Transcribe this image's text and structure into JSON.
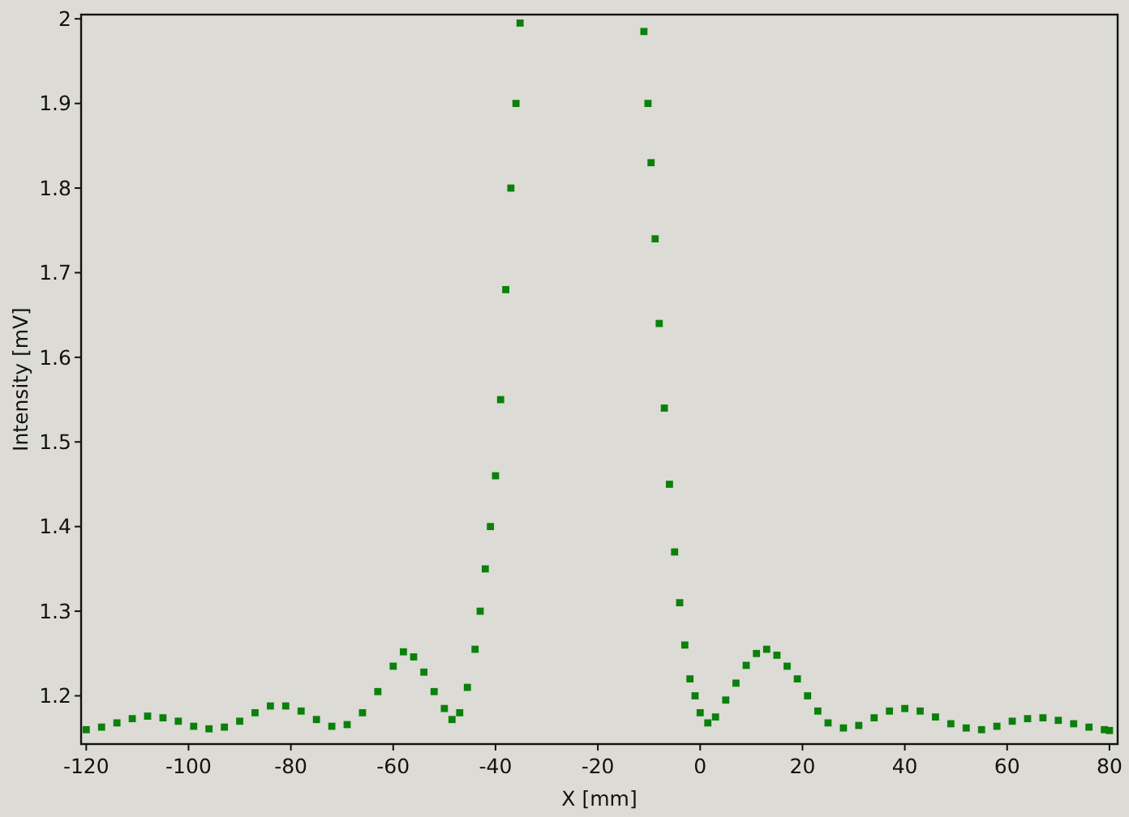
{
  "chart_data": {
    "type": "scatter",
    "xlabel": "X [mm]",
    "ylabel": "Intensity [mV]",
    "marker": "square",
    "grid": false,
    "xlim": [
      -121,
      81.6
    ],
    "ylim": [
      1.143,
      2.005
    ],
    "xticks": [
      -120,
      -100,
      -80,
      -60,
      -40,
      -20,
      0,
      20,
      40,
      60,
      80
    ],
    "yticks": [
      1.2,
      1.3,
      1.4,
      1.5,
      1.6,
      1.7,
      1.8,
      1.9,
      2
    ],
    "series": [
      {
        "color": "#0b800b",
        "x": [
          -120,
          -117,
          -114,
          -111,
          -108,
          -105,
          -102,
          -99,
          -96,
          -93,
          -90,
          -87,
          -84,
          -81,
          -78,
          -75,
          -72,
          -69,
          -66,
          -63,
          -60,
          -58,
          -56,
          -54,
          -52,
          -50,
          -48.5,
          -47,
          -45.5,
          -44,
          -43,
          -42,
          -41,
          -40,
          -39,
          -38,
          -37,
          -36,
          -35.2,
          -11,
          -10.2,
          -9.6,
          -8.8,
          -8,
          -7,
          -6,
          -5,
          -4,
          -3,
          -2,
          -1,
          0,
          1.5,
          3,
          5,
          7,
          9,
          11,
          13,
          15,
          17,
          19,
          21,
          23,
          25,
          28,
          31,
          34,
          37,
          40,
          43,
          46,
          49,
          52,
          55,
          58,
          61,
          64,
          67,
          70,
          73,
          76,
          79,
          80
        ],
        "values": [
          1.16,
          1.163,
          1.168,
          1.173,
          1.176,
          1.174,
          1.17,
          1.164,
          1.161,
          1.163,
          1.17,
          1.18,
          1.188,
          1.188,
          1.182,
          1.172,
          1.164,
          1.166,
          1.18,
          1.205,
          1.235,
          1.252,
          1.246,
          1.228,
          1.205,
          1.185,
          1.172,
          1.18,
          1.21,
          1.255,
          1.3,
          1.35,
          1.4,
          1.46,
          1.55,
          1.68,
          1.8,
          1.9,
          1.995,
          1.985,
          1.9,
          1.83,
          1.74,
          1.64,
          1.54,
          1.45,
          1.37,
          1.31,
          1.26,
          1.22,
          1.2,
          1.18,
          1.168,
          1.175,
          1.195,
          1.215,
          1.236,
          1.25,
          1.255,
          1.248,
          1.235,
          1.22,
          1.2,
          1.182,
          1.168,
          1.162,
          1.165,
          1.174,
          1.182,
          1.185,
          1.182,
          1.175,
          1.167,
          1.162,
          1.16,
          1.164,
          1.17,
          1.173,
          1.174,
          1.171,
          1.167,
          1.163,
          1.16,
          1.159
        ]
      }
    ]
  }
}
